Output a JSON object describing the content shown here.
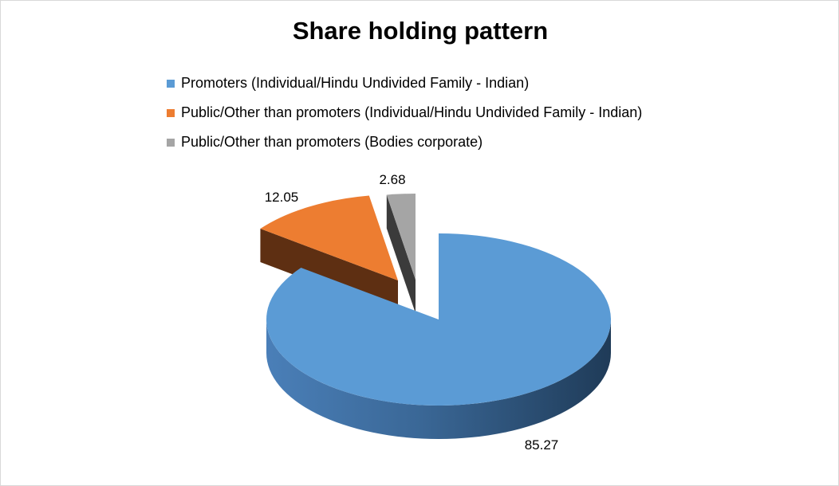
{
  "chart_data": {
    "type": "pie",
    "title": "Share holding pattern",
    "legend_position": "top",
    "exploded": true,
    "style": "3d",
    "series": [
      {
        "categories": [
          "Promoters (Individual/Hindu Undivided Family - Indian)",
          "Public/Other than promoters (Individual/Hindu Undivided Family - Indian)",
          "Public/Other than promoters (Bodies corporate)"
        ],
        "values": [
          85.27,
          12.05,
          2.68
        ],
        "data_labels": [
          "85.27",
          "12.05",
          "2.68"
        ],
        "colors": [
          "#5b9bd5",
          "#ed7d31",
          "#a5a5a5"
        ]
      }
    ]
  }
}
